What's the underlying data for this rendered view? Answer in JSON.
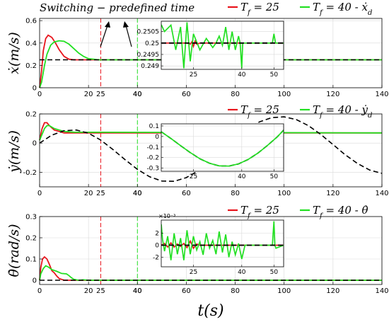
{
  "figure": {
    "title": "Switching − predefined time",
    "xlabel": "t(s)"
  },
  "colors": {
    "red": "#e8141c",
    "green": "#22e022",
    "ref": "#000000",
    "grid": "#d9d9d9"
  },
  "chart_data": [
    {
      "type": "line",
      "ylabel": "ẋ(m/s)",
      "xlim": [
        0,
        140
      ],
      "ylim": [
        0,
        0.62
      ],
      "xticks": [
        0,
        20,
        40,
        60,
        80,
        100,
        120,
        140
      ],
      "yticks": [
        0,
        0.2,
        0.4,
        0.6
      ],
      "ytick_labels": [
        "0",
        "0.2",
        "0.4",
        "0.6"
      ],
      "grid": true,
      "legend": "top-right",
      "legend_labels": [
        "T_f = 25",
        "T_f = 40 - ẋ_d"
      ],
      "vlines": [
        {
          "x": 25,
          "label": "25",
          "color": "red"
        },
        {
          "x": 40,
          "label": "40",
          "color": "green"
        }
      ],
      "series": [
        {
          "name": "T_f = 25",
          "color": "red",
          "x": [
            0,
            0.8,
            1.5,
            2.5,
            3.5,
            5,
            6.5,
            8,
            10,
            12,
            14,
            16,
            18,
            20,
            25,
            140
          ],
          "y": [
            0,
            0.15,
            0.33,
            0.44,
            0.47,
            0.45,
            0.4,
            0.34,
            0.28,
            0.255,
            0.25,
            0.25,
            0.25,
            0.25,
            0.25,
            0.25
          ]
        },
        {
          "name": "T_f = 40",
          "color": "green",
          "x": [
            0,
            0.8,
            2,
            3,
            4.5,
            6,
            8,
            10,
            12,
            14,
            16,
            18,
            20,
            22,
            24,
            28,
            40,
            140
          ],
          "y": [
            0,
            0.05,
            0.2,
            0.3,
            0.38,
            0.41,
            0.42,
            0.415,
            0.39,
            0.35,
            0.31,
            0.28,
            0.26,
            0.255,
            0.25,
            0.25,
            0.25,
            0.25
          ]
        },
        {
          "name": "ẋ_d",
          "color": "ref",
          "dashed": true,
          "x": [
            0,
            140
          ],
          "y": [
            0.25,
            0.25
          ]
        }
      ],
      "inset": {
        "xlim": [
          15,
          53
        ],
        "ylim": [
          0.24885,
          0.25095
        ],
        "xticks": [
          25,
          40,
          50
        ],
        "yticks": [
          0.249,
          0.2495,
          0.25,
          0.2505
        ],
        "ytick_labels": [
          "0.249",
          "0.2495",
          "0.25",
          "0.2505"
        ],
        "series": [
          {
            "color": "red",
            "x": [
              15,
              23,
              24,
              24.5,
              25,
              25.5,
              26,
              27,
              53
            ],
            "y": [
              0.25,
              0.25,
              0.24995,
              0.25005,
              0.24985,
              0.25008,
              0.24995,
              0.25,
              0.25
            ]
          },
          {
            "color": "green",
            "x": [
              15,
              16,
              18,
              19.5,
              21,
              22,
              23,
              24,
              25,
              27,
              29,
              31,
              32,
              33,
              34,
              35,
              36,
              37,
              38,
              39,
              39.5,
              40,
              40.3,
              41,
              49,
              49.5,
              50,
              50.5,
              53
            ],
            "y": [
              0.2508,
              0.2505,
              0.25078,
              0.2497,
              0.2507,
              0.2489,
              0.2509,
              0.2492,
              0.2504,
              0.2497,
              0.2502,
              0.2498,
              0.25,
              0.2503,
              0.2499,
              0.2507,
              0.2497,
              0.2505,
              0.2497,
              0.2503,
              0.25,
              0.2489,
              0.25,
              0.25,
              0.25,
              0.25,
              0.2504,
              0.25,
              0.25
            ]
          },
          {
            "color": "ref",
            "dashed": true,
            "x": [
              15,
              53
            ],
            "y": [
              0.25,
              0.25
            ]
          }
        ]
      }
    },
    {
      "type": "line",
      "ylabel": "ẏ(m/s)",
      "xlim": [
        0,
        140
      ],
      "ylim": [
        -0.3,
        0.2
      ],
      "xticks": [
        0,
        20,
        40,
        60,
        80,
        100,
        120,
        140
      ],
      "yticks": [
        -0.2,
        0,
        0.2
      ],
      "ytick_labels": [
        "-0.2",
        "0",
        "0.2"
      ],
      "grid": true,
      "legend": "top-right",
      "legend_labels": [
        "T_f = 25",
        "T_f = 40 - ẏ_d"
      ],
      "vlines": [
        {
          "x": 25,
          "label": "25",
          "color": "red"
        },
        {
          "x": 40,
          "label": "40",
          "color": "green"
        }
      ],
      "series": [
        {
          "name": "T_f = 25",
          "color": "red",
          "x": [
            0,
            1,
            2,
            3,
            4,
            6,
            8,
            10,
            140
          ],
          "y": [
            0.02,
            0.1,
            0.14,
            0.14,
            0.12,
            0.09,
            0.08,
            0.07,
            0.07
          ]
        },
        {
          "name": "T_f = 40",
          "color": "green",
          "x": [
            0,
            1,
            2,
            3,
            4,
            6,
            8,
            10,
            14,
            140
          ],
          "y": [
            0.02,
            0.06,
            0.1,
            0.12,
            0.12,
            0.1,
            0.09,
            0.08,
            0.075,
            0.07
          ]
        },
        {
          "name": "ẏ_d",
          "color": "ref",
          "dashed": true,
          "x": [
            0,
            5,
            10,
            15,
            20,
            25,
            30,
            35,
            40,
            45,
            50,
            55,
            60,
            65,
            70,
            75,
            80,
            85,
            90,
            95,
            100,
            105,
            110,
            115,
            120,
            125,
            130,
            135,
            140
          ],
          "y": [
            0,
            0.055,
            0.085,
            0.09,
            0.068,
            0.021,
            -0.044,
            -0.114,
            -0.18,
            -0.231,
            -0.26,
            -0.262,
            -0.237,
            -0.189,
            -0.123,
            -0.048,
            0.027,
            0.095,
            0.146,
            0.175,
            0.18,
            0.161,
            0.119,
            0.059,
            -0.01,
            -0.08,
            -0.14,
            -0.185,
            -0.208
          ]
        }
      ],
      "inset": {
        "xlim": [
          15,
          53
        ],
        "ylim": [
          -0.33,
          0.12
        ],
        "xticks": [
          25,
          40,
          50
        ],
        "yticks": [
          -0.3,
          -0.2,
          -0.1,
          0,
          0.1
        ],
        "ytick_labels": [
          "-0.3",
          "-0.2",
          "-0.1",
          "0",
          "0.1"
        ],
        "series": [
          {
            "color": "ref",
            "dashed": true,
            "x": [
              15,
              18,
              21,
              24,
              27,
              30,
              33,
              36,
              39,
              42,
              45,
              48,
              51,
              53
            ],
            "y": [
              0.045,
              -0.019,
              -0.087,
              -0.153,
              -0.211,
              -0.254,
              -0.279,
              -0.281,
              -0.26,
              -0.218,
              -0.158,
              -0.085,
              -0.004,
              0.06
            ]
          },
          {
            "color": "green",
            "x": [
              15,
              18,
              21,
              24,
              27,
              30,
              33,
              36,
              39,
              42,
              45,
              48,
              51,
              53
            ],
            "y": [
              0.045,
              -0.019,
              -0.087,
              -0.153,
              -0.211,
              -0.254,
              -0.279,
              -0.281,
              -0.26,
              -0.218,
              -0.158,
              -0.085,
              -0.004,
              0.06
            ]
          }
        ]
      }
    },
    {
      "type": "line",
      "ylabel": "θ̇(rad/s)",
      "xlim": [
        0,
        140
      ],
      "ylim": [
        -0.02,
        0.3
      ],
      "xticks": [
        0,
        20,
        40,
        60,
        80,
        100,
        120,
        140
      ],
      "yticks": [
        0,
        0.1,
        0.2,
        0.3
      ],
      "ytick_labels": [
        "0",
        "0.1",
        "0.2",
        "0.3"
      ],
      "grid": true,
      "legend": "top-right",
      "legend_labels": [
        "T_f = 25",
        "T_f = 40 - θ̇"
      ],
      "vlines": [
        {
          "x": 25,
          "label": "25",
          "color": "red"
        },
        {
          "x": 40,
          "label": "40",
          "color": "green"
        }
      ],
      "series": [
        {
          "name": "T_f = 25",
          "color": "red",
          "x": [
            0,
            0.5,
            1.2,
            2,
            3,
            4,
            5,
            6,
            7,
            8,
            10,
            140
          ],
          "y": [
            0,
            0.06,
            0.1,
            0.11,
            0.1,
            0.075,
            0.045,
            0.035,
            0.02,
            0.008,
            0,
            0
          ]
        },
        {
          "name": "T_f = 40",
          "color": "green",
          "x": [
            0,
            0.5,
            1.5,
            2.5,
            3.5,
            5,
            7,
            9,
            11,
            12,
            13,
            14,
            16,
            18,
            20,
            140
          ],
          "y": [
            0,
            0.03,
            0.055,
            0.068,
            0.063,
            0.05,
            0.042,
            0.032,
            0.03,
            0.022,
            0.012,
            0.004,
            0,
            0.002,
            0,
            0
          ]
        },
        {
          "name": "θ̇",
          "color": "ref",
          "dashed": true,
          "x": [
            0,
            140
          ],
          "y": [
            0,
            0
          ]
        }
      ],
      "inset": {
        "exponent": "×10⁻³",
        "xlim": [
          15,
          53
        ],
        "ylim": [
          -3.6,
          4.2
        ],
        "xticks": [
          25,
          40,
          50
        ],
        "yticks": [
          -2,
          0,
          2
        ],
        "ytick_labels": [
          "-2",
          "0",
          "2"
        ],
        "series": [
          {
            "color": "red",
            "x": [
              15,
              16,
              17,
              18,
              19,
              20,
              21,
              22,
              23,
              24,
              25,
              26,
              27,
              53
            ],
            "y": [
              0,
              0.3,
              -0.3,
              0.4,
              -0.3,
              0.2,
              -0.2,
              0.3,
              -0.4,
              0.7,
              -0.5,
              0.2,
              0,
              0
            ]
          },
          {
            "color": "green",
            "x": [
              15,
              15.4,
              16,
              17,
              18,
              19,
              20,
              21,
              22,
              23,
              24,
              25,
              26,
              27,
              28,
              29,
              30,
              31,
              32,
              33,
              34,
              35,
              36,
              37,
              38,
              39,
              40,
              41,
              42,
              49.5,
              50,
              50.3,
              50.6,
              53
            ],
            "y": [
              3.5,
              1,
              -1,
              1.5,
              -2.5,
              2,
              -1.5,
              1.2,
              -2.5,
              2.5,
              -1.5,
              1.5,
              -0.8,
              0.6,
              -1.6,
              2,
              -0.5,
              0.8,
              -1.5,
              2.3,
              -1.2,
              1.8,
              -2,
              0.6,
              -1.6,
              0.3,
              -2.3,
              0,
              0,
              0,
              4,
              0,
              -0.5,
              0
            ]
          },
          {
            "color": "ref",
            "dashed": true,
            "x": [
              15,
              53
            ],
            "y": [
              0,
              0
            ]
          }
        ]
      }
    }
  ]
}
